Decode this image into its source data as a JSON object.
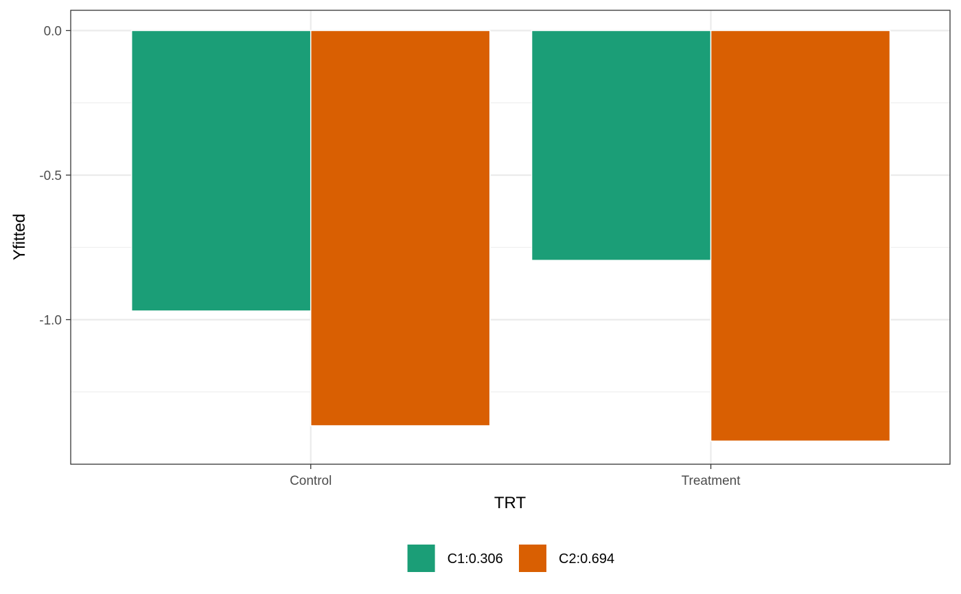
{
  "chart_data": {
    "type": "bar",
    "categories": [
      "Control",
      "Treatment"
    ],
    "series": [
      {
        "name": "C1:0.306",
        "color": "#1B9E77",
        "values": [
          -0.97,
          -0.795
        ]
      },
      {
        "name": "C2:0.694",
        "color": "#D95F02",
        "values": [
          -1.367,
          -1.42
        ]
      }
    ],
    "xlabel": "TRT",
    "ylabel": "Yfitted",
    "ylim": [
      -1.5,
      0.07
    ],
    "yticks": [
      0.0,
      -0.5,
      -1.0
    ],
    "ytick_labels": [
      "0.0",
      "-0.5",
      "-1.0"
    ],
    "grid": true,
    "legend_position": "bottom"
  }
}
